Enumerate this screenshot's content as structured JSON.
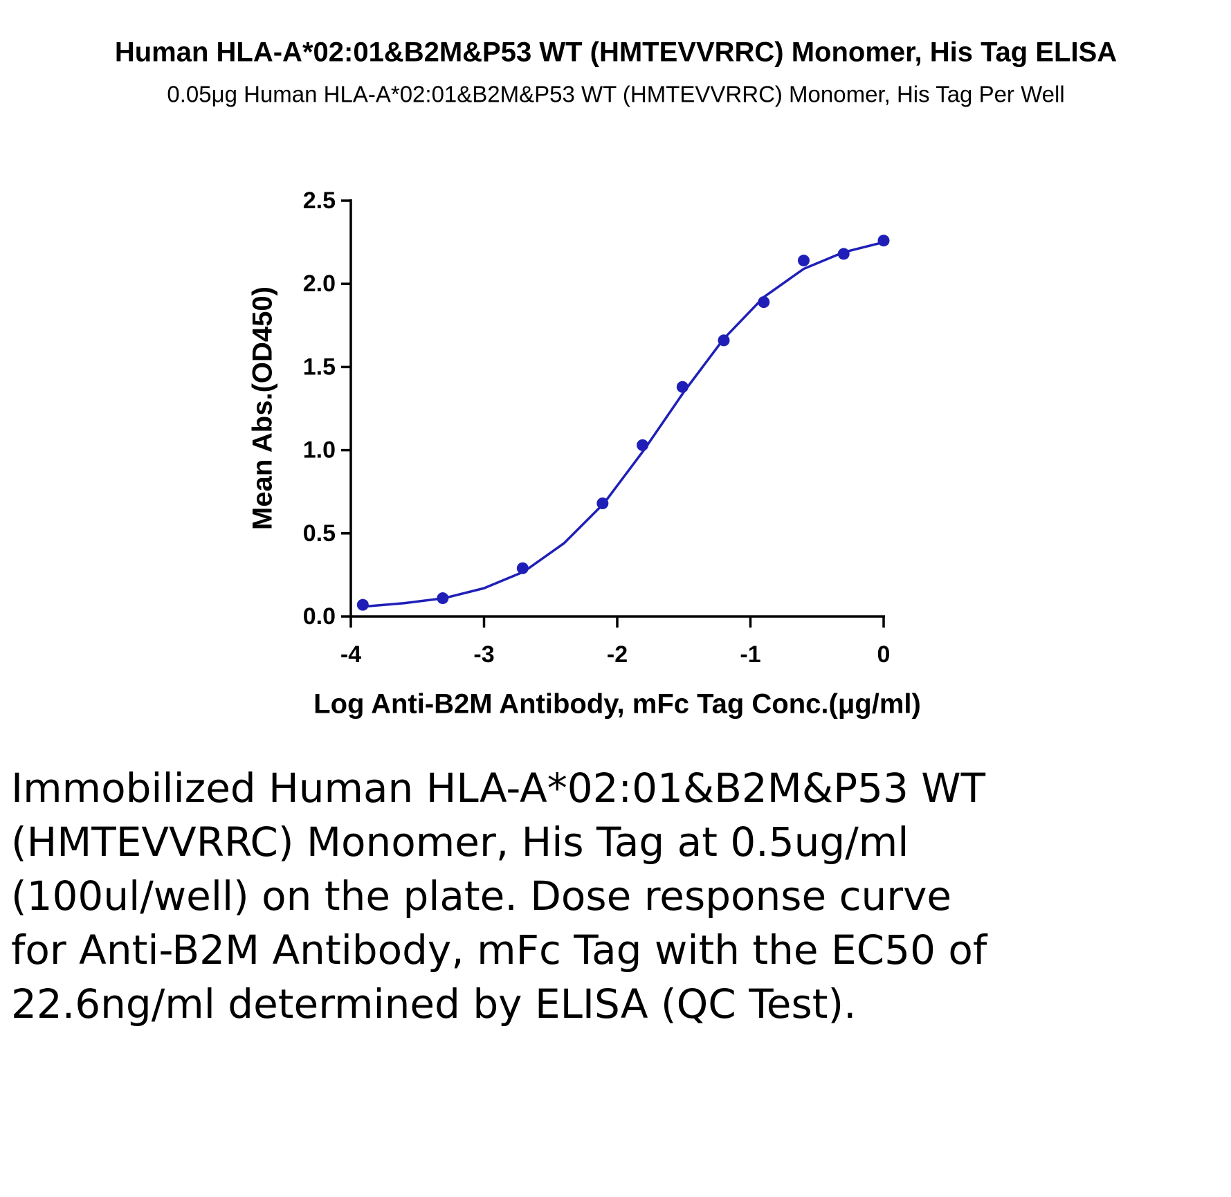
{
  "chart_data": {
    "type": "scatter",
    "title": "Human HLA-A*02:01&B2M&P53 WT (HMTEVVRRC) Monomer, His Tag ELISA",
    "subtitle": "0.05μg Human HLA-A*02:01&B2M&P53 WT (HMTEVVRRC) Monomer, His Tag Per Well",
    "x_label": "Log Anti-B2M Antibody, mFc Tag Conc.(μg/ml)",
    "y_label": "Mean Abs.(OD450)",
    "x": [
      -3.91,
      -3.31,
      -2.71,
      -2.11,
      -1.81,
      -1.51,
      -1.2,
      -0.9,
      -0.6,
      -0.3,
      0
    ],
    "values": [
      0.07,
      0.11,
      0.29,
      0.68,
      1.03,
      1.38,
      1.66,
      1.89,
      2.14,
      2.18,
      2.26
    ],
    "color": "#1f1fb8",
    "curve": {
      "x": [
        -3.9,
        -3.6,
        -3.3,
        -3.0,
        -2.7,
        -2.4,
        -2.1,
        -1.8,
        -1.5,
        -1.2,
        -0.9,
        -0.6,
        -0.3,
        0
      ],
      "values": [
        0.06,
        0.08,
        0.11,
        0.17,
        0.27,
        0.44,
        0.68,
        1.0,
        1.35,
        1.67,
        1.92,
        2.09,
        2.19,
        2.25
      ]
    },
    "xlim": [
      -4,
      0
    ],
    "xticks": [
      -4,
      -3,
      -2,
      -1,
      0
    ],
    "ylim": [
      0,
      2.5
    ],
    "yticks": [
      {
        "value": 0,
        "label": "0.0"
      },
      0.5,
      {
        "value": 1,
        "label": "1.0"
      },
      1.5,
      {
        "value": 2,
        "label": "2.0"
      },
      2.5
    ],
    "caption": "Immobilized Human HLA-A*02:01&B2M&P53 WT (HMTEVVRRC) Monomer, His Tag at 0.5ug/ml (100ul/well) on the plate. Dose response curve for Anti-B2M Antibody, mFc Tag with the EC50 of 22.6ng/ml determined by ELISA (QC Test)."
  }
}
